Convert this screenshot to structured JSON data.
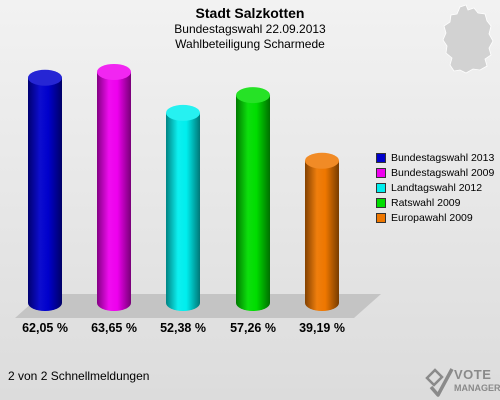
{
  "header": {
    "title": "Stadt Salzkotten",
    "subtitle1": "Bundestagswahl 22.09.2013",
    "subtitle2": "Wahlbeteiligung Scharmede"
  },
  "chart_data": {
    "type": "bar",
    "title": "Stadt Salzkotten",
    "subtitle": [
      "Bundestagswahl 22.09.2013",
      "Wahlbeteiligung Scharmede"
    ],
    "categories": [
      "Bundestagswahl 2013",
      "Bundestagswahl 2009",
      "Landtagswahl 2012",
      "Ratswahl 2009",
      "Europawahl 2009"
    ],
    "values": [
      62.05,
      63.65,
      52.38,
      57.26,
      39.19
    ],
    "value_labels": [
      "62,05 %",
      "63,65 %",
      "52,38 %",
      "57,26 %",
      "39,19 %"
    ],
    "colors": [
      "#0000cc",
      "#ee00ee",
      "#00eeee",
      "#00dd00",
      "#ee7700"
    ],
    "ylim": [
      0,
      70
    ],
    "grid": false,
    "legend_position": "right",
    "style": "3d-cylinder"
  },
  "footer": {
    "text": "2 von 2 Schnellmeldungen"
  },
  "logo": {
    "line1": "VOTE",
    "line2": "MANAGER"
  }
}
